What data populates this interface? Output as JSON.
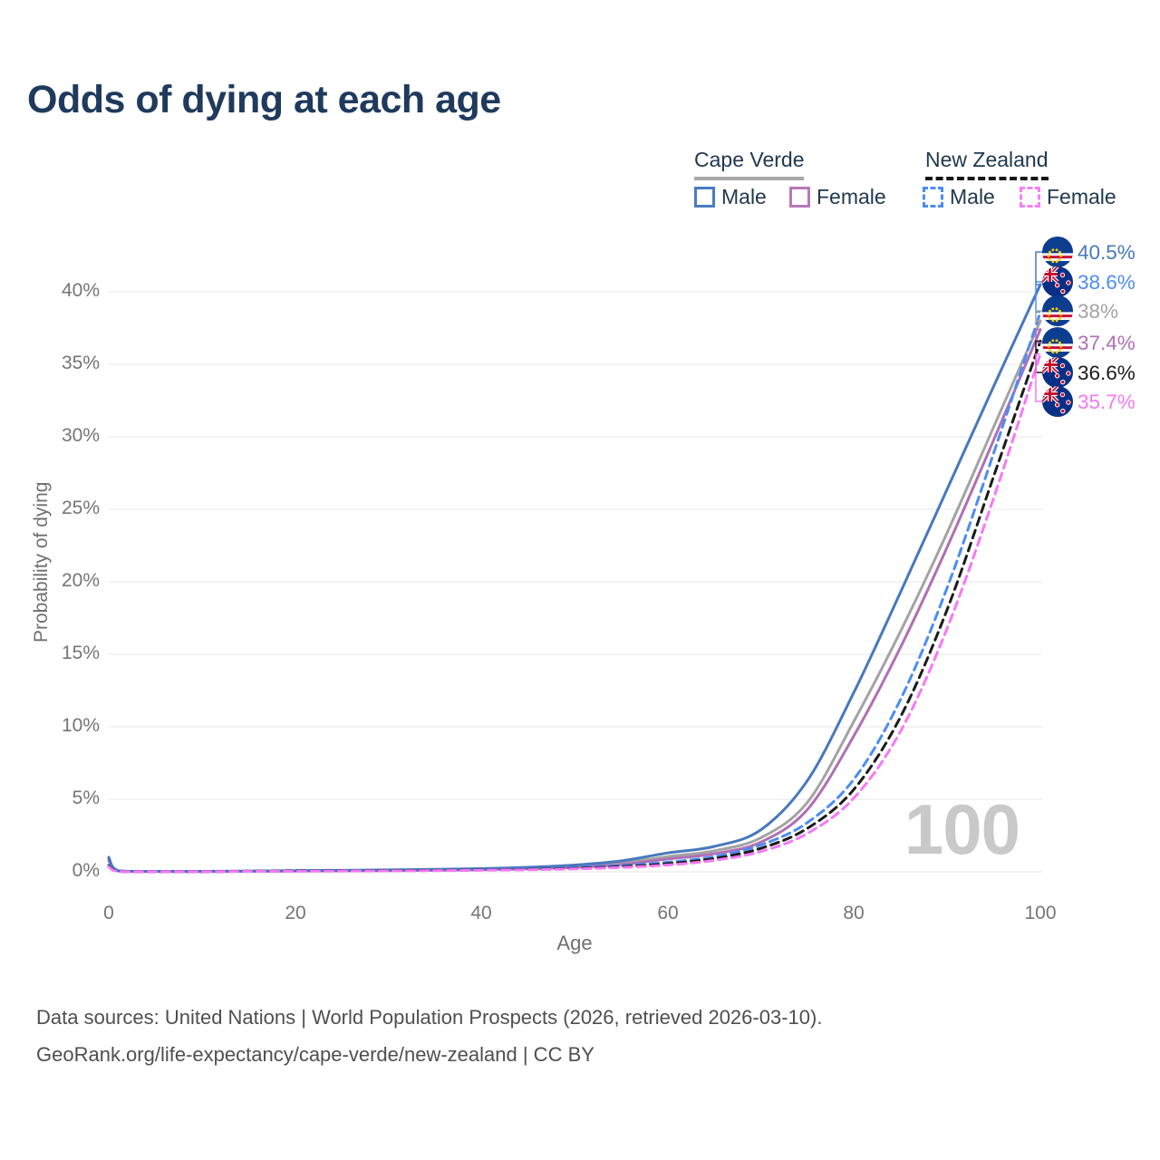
{
  "page": {
    "title": "Odds of dying at each age",
    "watermark": "100",
    "source_line1": "Data sources: United Nations | World Population Prospects (2026, retrieved 2026-03-10).",
    "source_line2": "GeoRank.org/life-expectancy/cape-verde/new-zealand | CC BY"
  },
  "legend": {
    "groups": [
      {
        "label": "Cape Verde",
        "line_style": "solid",
        "line_color": "#a8a8a8",
        "items": [
          {
            "label": "Male",
            "color": "#4a7cc0",
            "style": "solid"
          },
          {
            "label": "Female",
            "color": "#b678b9",
            "style": "solid"
          }
        ]
      },
      {
        "label": "New Zealand",
        "line_style": "dashed",
        "line_color": "#161616",
        "items": [
          {
            "label": "Male",
            "color": "#4b8cf5",
            "style": "dashed"
          },
          {
            "label": "Female",
            "color": "#f97df9",
            "style": "dashed"
          }
        ]
      }
    ]
  },
  "chart_data": {
    "type": "line",
    "title": "Odds of dying at each age",
    "xlabel": "Age",
    "ylabel": "Probability of dying",
    "unit": "%",
    "xlim": [
      0,
      100
    ],
    "ylim": [
      0,
      42
    ],
    "grid": "horizontal",
    "legend_position": "top-right",
    "x_ticks": [
      "0",
      "20",
      "40",
      "60",
      "80",
      "100"
    ],
    "x_tick_values": [
      0,
      20,
      40,
      60,
      80,
      100
    ],
    "y_ticks": [
      "0%",
      "5%",
      "10%",
      "15%",
      "20%",
      "25%",
      "30%",
      "35%",
      "40%"
    ],
    "y_tick_values": [
      0,
      5,
      10,
      15,
      20,
      25,
      30,
      35,
      40
    ],
    "x": [
      0,
      1,
      5,
      10,
      15,
      20,
      25,
      30,
      35,
      40,
      45,
      50,
      55,
      60,
      65,
      70,
      75,
      80,
      85,
      90,
      95,
      100
    ],
    "series": [
      {
        "id": "cape-verde-male",
        "name": "Cape Verde Male",
        "country": "Cape Verde",
        "sex": "Male",
        "style": "solid",
        "color": "#4878bd",
        "flag": "cv",
        "end_label": "40.5%",
        "values": [
          1.0,
          0.08,
          0.03,
          0.03,
          0.05,
          0.08,
          0.1,
          0.13,
          0.17,
          0.22,
          0.31,
          0.47,
          0.75,
          1.3,
          1.75,
          2.9,
          6.3,
          12.4,
          19.3,
          26.4,
          33.5,
          40.5
        ]
      },
      {
        "id": "cape-verde-both",
        "name": "Cape Verde Both sexes",
        "country": "Cape Verde",
        "sex": "Both",
        "style": "solid",
        "color": "#a3a3a3",
        "flag": "cv",
        "end_label": "38%",
        "values": [
          0.88,
          0.07,
          0.03,
          0.03,
          0.04,
          0.06,
          0.08,
          0.1,
          0.13,
          0.17,
          0.24,
          0.37,
          0.6,
          1.05,
          1.45,
          2.35,
          4.8,
          10.4,
          16.6,
          23.4,
          30.7,
          38.0
        ]
      },
      {
        "id": "cape-verde-female",
        "name": "Cape Verde Female",
        "country": "Cape Verde",
        "sex": "Female",
        "style": "solid",
        "color": "#b06fb5",
        "flag": "cv",
        "end_label": "37.4%",
        "values": [
          0.78,
          0.06,
          0.02,
          0.02,
          0.03,
          0.05,
          0.06,
          0.08,
          0.1,
          0.14,
          0.2,
          0.31,
          0.5,
          0.88,
          1.25,
          2.05,
          4.3,
          9.4,
          15.5,
          22.4,
          29.8,
          37.4
        ]
      },
      {
        "id": "new-zealand-male",
        "name": "New Zealand Male",
        "country": "New Zealand",
        "sex": "Male",
        "style": "dashed",
        "color": "#4b8cf5",
        "flag": "nz",
        "end_label": "38.6%",
        "values": [
          0.46,
          0.04,
          0.01,
          0.01,
          0.05,
          0.08,
          0.09,
          0.1,
          0.12,
          0.15,
          0.21,
          0.29,
          0.43,
          0.66,
          1.05,
          1.85,
          3.4,
          6.4,
          11.9,
          19.6,
          28.9,
          38.6
        ]
      },
      {
        "id": "new-zealand-both",
        "name": "New Zealand Both sexes",
        "country": "New Zealand",
        "sex": "Both",
        "style": "dashed",
        "color": "#1b1b1b",
        "flag": "nz",
        "end_label": "36.6%",
        "values": [
          0.41,
          0.04,
          0.01,
          0.01,
          0.04,
          0.06,
          0.07,
          0.08,
          0.1,
          0.13,
          0.17,
          0.24,
          0.36,
          0.56,
          0.92,
          1.62,
          3.0,
          5.7,
          10.7,
          18.1,
          27.3,
          36.6
        ]
      },
      {
        "id": "new-zealand-female",
        "name": "New Zealand Female",
        "country": "New Zealand",
        "sex": "Female",
        "style": "dashed",
        "color": "#f678f6",
        "flag": "nz",
        "end_label": "35.7%",
        "values": [
          0.36,
          0.03,
          0.01,
          0.01,
          0.03,
          0.04,
          0.05,
          0.06,
          0.08,
          0.11,
          0.14,
          0.2,
          0.3,
          0.47,
          0.79,
          1.4,
          2.65,
          5.1,
          9.7,
          16.8,
          25.8,
          35.7
        ]
      }
    ]
  }
}
